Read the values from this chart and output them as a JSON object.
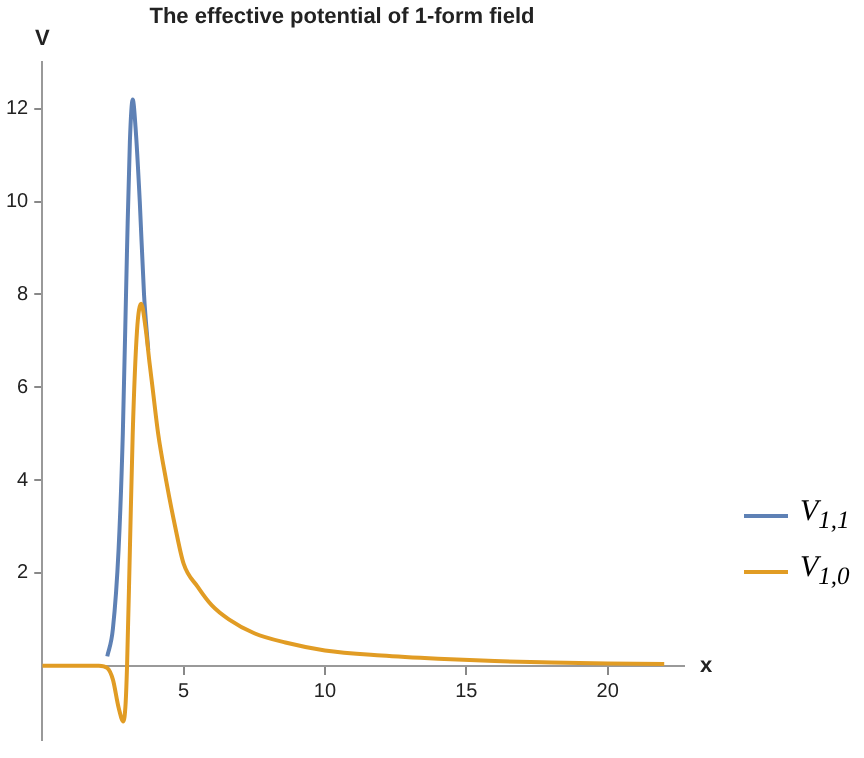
{
  "chart_data": {
    "type": "line",
    "title": "The effective potential of 1-form field",
    "xlabel": "x",
    "ylabel": "V",
    "xlim": [
      0,
      22.7
    ],
    "ylim": [
      -1.6,
      13
    ],
    "xticks": [
      5,
      10,
      15,
      20
    ],
    "yticks": [
      2,
      4,
      6,
      8,
      10,
      12
    ],
    "grid": false,
    "legend": "right",
    "marker": "none",
    "line_style": "solid",
    "series": [
      {
        "name": "V$_{1,1}$",
        "color": "#5e81b5",
        "x": [
          2.3,
          2.5,
          2.7,
          2.85,
          3.0,
          3.1,
          3.2,
          3.3,
          3.45,
          3.6,
          3.75
        ],
        "values": [
          0.2,
          0.8,
          2.5,
          5,
          9,
          11.3,
          12.2,
          11.6,
          10,
          8,
          6.8
        ]
      },
      {
        "name": "V$_{1,0}$",
        "color": "#e19c24",
        "x": [
          0,
          1,
          2,
          2.3,
          2.5,
          2.7,
          2.87,
          2.95,
          3.0,
          3.1,
          3.2,
          3.35,
          3.5,
          3.65,
          3.8,
          3.9,
          4.1,
          4.38,
          4.7,
          5,
          5.5,
          6,
          6.6,
          7.5,
          8.6,
          10,
          12,
          14,
          16,
          18,
          20,
          22
        ],
        "values": [
          0,
          0,
          0,
          -0.05,
          -0.3,
          -0.9,
          -1.2,
          -0.8,
          0,
          2.5,
          5,
          7.2,
          7.8,
          7.3,
          6.5,
          6,
          5,
          4,
          3,
          2.2,
          1.7,
          1.3,
          1,
          0.7,
          0.5,
          0.33,
          0.22,
          0.15,
          0.1,
          0.07,
          0.05,
          0.04
        ]
      }
    ]
  }
}
